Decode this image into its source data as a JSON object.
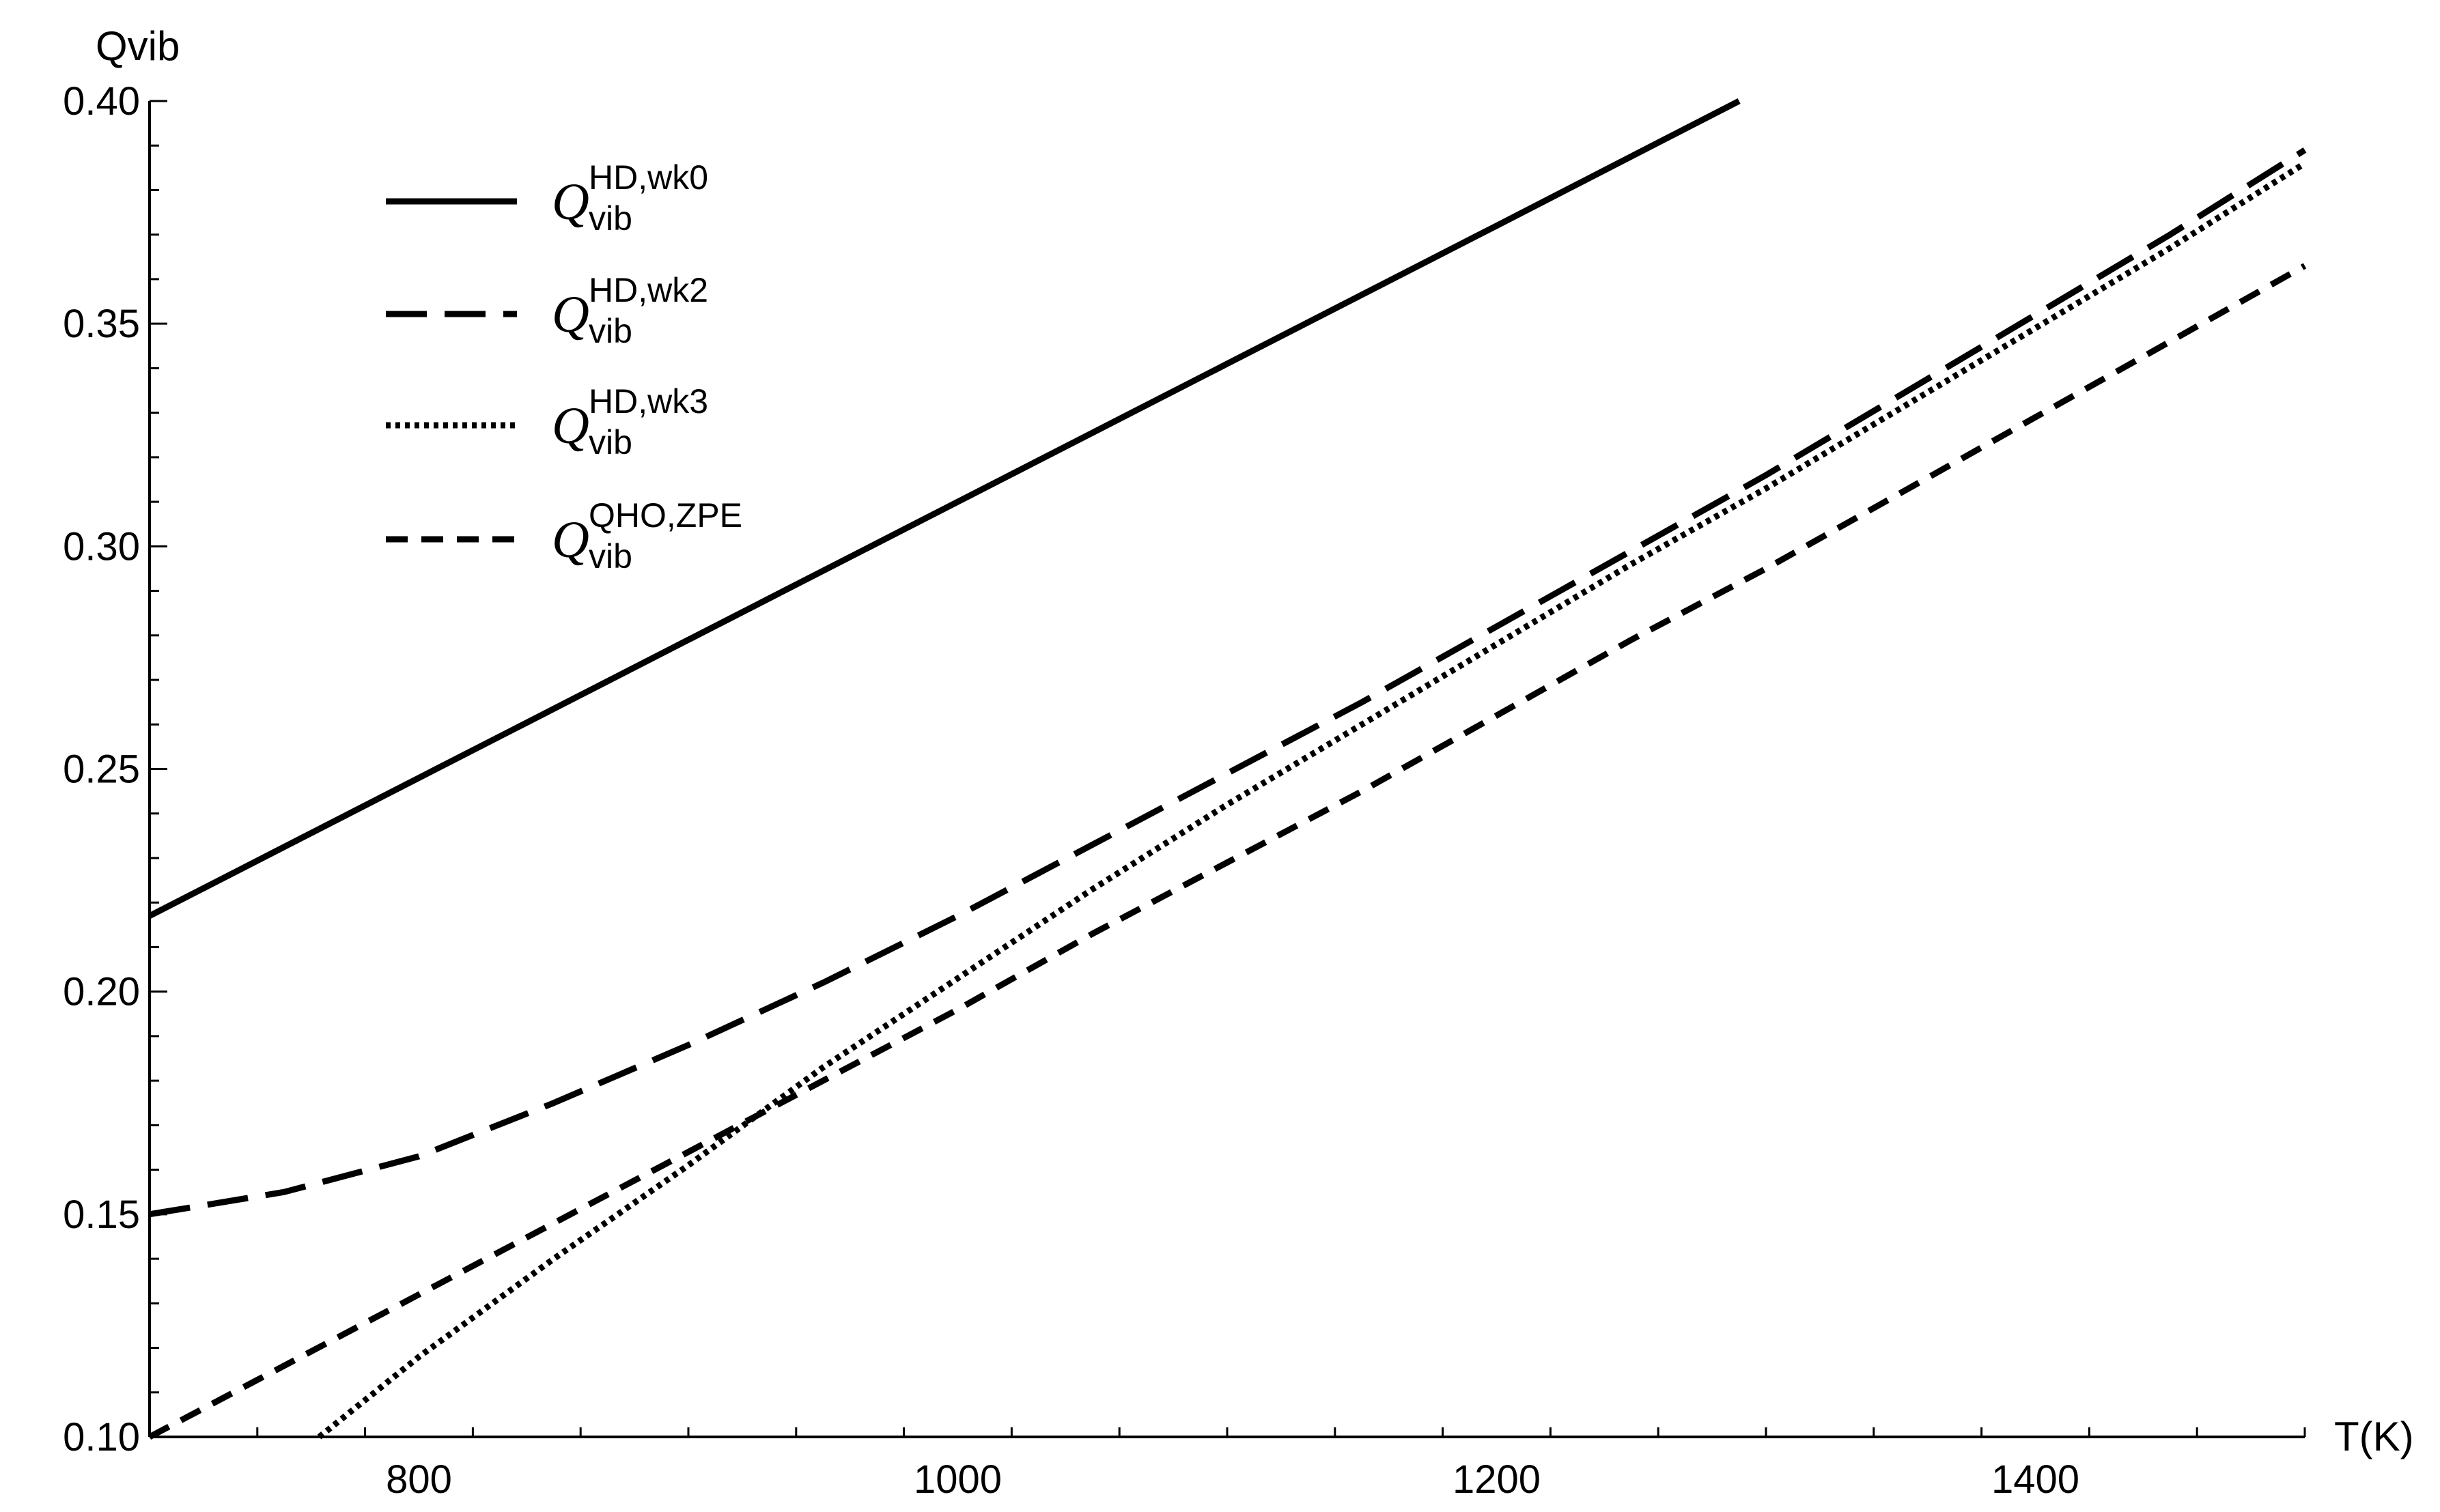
{
  "chart_data": {
    "type": "line",
    "title": "",
    "xlabel": "T(K)",
    "ylabel": "Qvib",
    "xlim": [
      700,
      1500
    ],
    "ylim": [
      0.1,
      0.4
    ],
    "x_ticks": [
      800,
      1000,
      1200,
      1400
    ],
    "x_tick_labels": [
      "800",
      "1000",
      "1200",
      "1400"
    ],
    "y_ticks": [
      0.1,
      0.15,
      0.2,
      0.25,
      0.3,
      0.35,
      0.4
    ],
    "y_tick_labels": [
      "0.10",
      "0.15",
      "0.20",
      "0.25",
      "0.30",
      "0.35",
      "0.40"
    ],
    "grid": false,
    "legend_position": "top-left",
    "series": [
      {
        "name": "Q_vib^HD,wk0",
        "legend": {
          "main": "Q",
          "sub": "vib",
          "sup": "HD,wk0"
        },
        "style": "solid",
        "x": [
          700,
          800,
          900,
          1000,
          1100,
          1200,
          1290
        ],
        "y": [
          0.217,
          0.248,
          0.279,
          0.31,
          0.341,
          0.372,
          0.4
        ]
      },
      {
        "name": "Q_vib^HD,wk2",
        "legend": {
          "main": "Q",
          "sub": "vib",
          "sup": "HD,wk2"
        },
        "style": "long-dash",
        "x": [
          700,
          750,
          800,
          850,
          900,
          950,
          1000,
          1050,
          1100,
          1150,
          1200,
          1250,
          1300,
          1350,
          1400,
          1450,
          1500
        ],
        "y": [
          0.15,
          0.155,
          0.163,
          0.175,
          0.188,
          0.202,
          0.217,
          0.233,
          0.249,
          0.265,
          0.282,
          0.299,
          0.316,
          0.334,
          0.352,
          0.37,
          0.389
        ]
      },
      {
        "name": "Q_vib^HD,wk3",
        "legend": {
          "main": "Q",
          "sub": "vib",
          "sup": "HD,wk3"
        },
        "style": "dotted",
        "x": [
          763,
          800,
          850,
          900,
          950,
          1000,
          1050,
          1100,
          1150,
          1200,
          1250,
          1300,
          1350,
          1400,
          1450,
          1500
        ],
        "y": [
          0.1,
          0.118,
          0.14,
          0.161,
          0.183,
          0.203,
          0.223,
          0.242,
          0.26,
          0.278,
          0.296,
          0.313,
          0.331,
          0.349,
          0.367,
          0.386
        ]
      },
      {
        "name": "Q_vib^QHO,ZPE",
        "legend": {
          "main": "Q",
          "sub": "vib",
          "sup": "QHO,ZPE"
        },
        "style": "short-dash",
        "x": [
          700,
          750,
          800,
          850,
          900,
          950,
          1000,
          1050,
          1100,
          1150,
          1200,
          1250,
          1300,
          1350,
          1400,
          1450,
          1500
        ],
        "y": [
          0.1,
          0.116,
          0.132,
          0.148,
          0.164,
          0.18,
          0.196,
          0.213,
          0.229,
          0.245,
          0.262,
          0.279,
          0.295,
          0.312,
          0.329,
          0.346,
          0.363
        ]
      }
    ]
  }
}
